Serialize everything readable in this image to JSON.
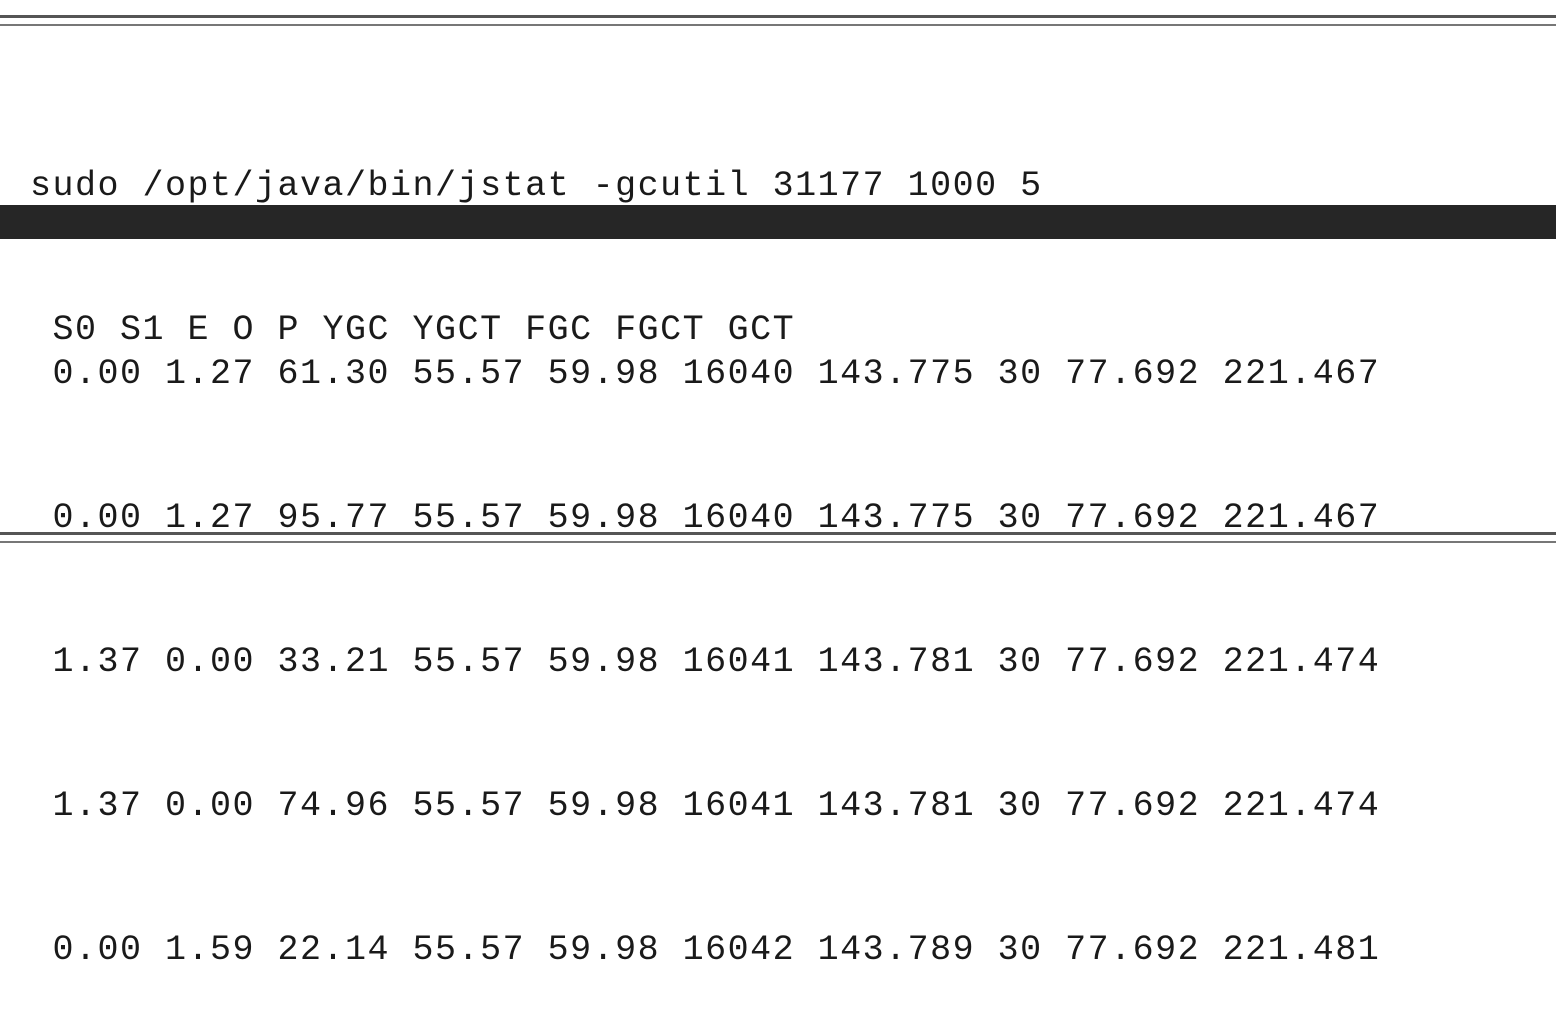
{
  "terminal": {
    "command": "sudo /opt/java/bin/jstat -gcutil 31177 1000 5",
    "header": " S0 S1 E O P YGC YGCT FGC FGCT GCT",
    "rows": [
      " 0.00 1.27 61.30 55.57 59.98 16040 143.775 30 77.692 221.467",
      " 0.00 1.27 95.77 55.57 59.98 16040 143.775 30 77.692 221.467",
      " 1.37 0.00 33.21 55.57 59.98 16041 143.781 30 77.692 221.474",
      " 1.37 0.00 74.96 55.57 59.98 16041 143.781 30 77.692 221.474",
      " 0.00 1.59 22.14 55.57 59.98 16042 143.789 30 77.692 221.481"
    ]
  },
  "colors": {
    "text": "#1a1a1a",
    "band": "#262626",
    "rule": "#555555",
    "background": "#ffffff"
  }
}
